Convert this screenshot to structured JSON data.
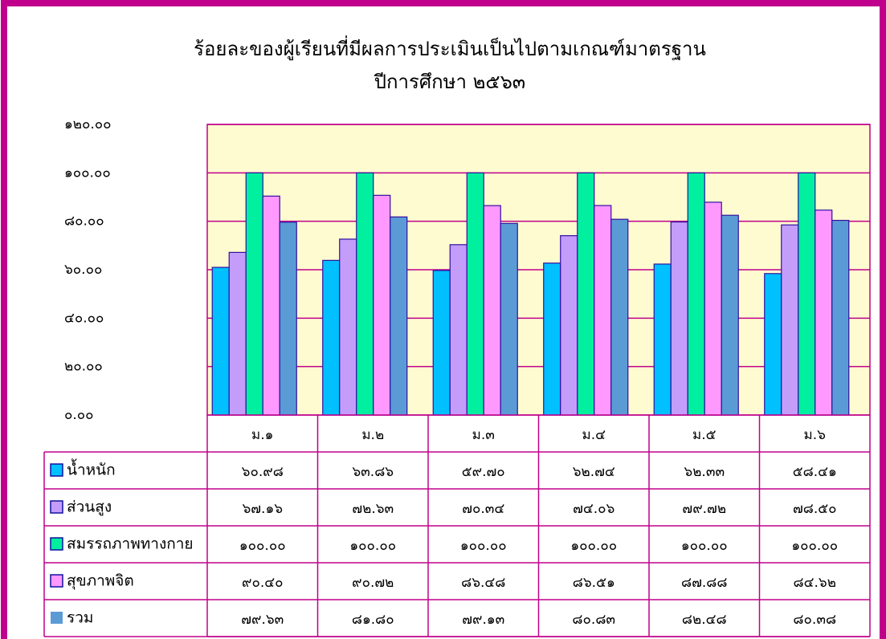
{
  "chart_data": {
    "type": "bar",
    "title": "ร้อยละของผู้เรียนที่มีผลการประเมินเป็นไปตามเกณฑ์มาตรฐาน",
    "subtitle": "ปีการศึกษา ๒๕๖๓",
    "categories": [
      "ม.๑",
      "ม.๒",
      "ม.๓",
      "ม.๔",
      "ม.๕",
      "ม.๖"
    ],
    "series": [
      {
        "name": "น้ำหนัก",
        "color": "#00c0ff",
        "values": [
          60.98,
          63.86,
          59.7,
          62.74,
          62.33,
          58.41
        ],
        "value_labels": [
          "๖๐.๙๘",
          "๖๓.๘๖",
          "๕๙.๗๐",
          "๖๒.๗๔",
          "๖๒.๓๓",
          "๕๘.๔๑"
        ]
      },
      {
        "name": "ส่วนสูง",
        "color": "#c49dfb",
        "values": [
          67.16,
          72.63,
          70.34,
          74.06,
          79.72,
          78.5
        ],
        "value_labels": [
          "๖๗.๑๖",
          "๗๒.๖๓",
          "๗๐.๓๔",
          "๗๔.๐๖",
          "๗๙.๗๒",
          "๗๘.๕๐"
        ]
      },
      {
        "name": "สมรรถภาพทางกาย",
        "color": "#00f0a0",
        "values": [
          100,
          100,
          100,
          100,
          100,
          100
        ],
        "value_labels": [
          "๑๐๐.๐๐",
          "๑๐๐.๐๐",
          "๑๐๐.๐๐",
          "๑๐๐.๐๐",
          "๑๐๐.๐๐",
          "๑๐๐.๐๐"
        ]
      },
      {
        "name": "สุขภาพจิต",
        "color": "#ff99ff",
        "values": [
          90.4,
          90.72,
          86.48,
          86.51,
          87.88,
          84.62
        ],
        "value_labels": [
          "๙๐.๔๐",
          "๙๐.๗๒",
          "๘๖.๔๘",
          "๘๖.๕๑",
          "๘๗.๘๘",
          "๘๔.๖๒"
        ]
      },
      {
        "name": "รวม",
        "color": "#5b9bd5",
        "values": [
          79.63,
          81.8,
          79.13,
          80.83,
          82.48,
          80.38
        ],
        "value_labels": [
          "๗๙.๖๓",
          "๘๑.๘๐",
          "๗๙.๑๓",
          "๘๐.๘๓",
          "๘๒.๔๘",
          "๘๐.๓๘"
        ]
      }
    ],
    "ylim": [
      0,
      120
    ],
    "yticks": [
      {
        "value": 0,
        "label": "๐.๐๐"
      },
      {
        "value": 20,
        "label": "๒๐.๐๐"
      },
      {
        "value": 40,
        "label": "๔๐.๐๐"
      },
      {
        "value": 60,
        "label": "๖๐.๐๐"
      },
      {
        "value": 80,
        "label": "๘๐.๐๐"
      },
      {
        "value": 100,
        "label": "๑๐๐.๐๐"
      },
      {
        "value": 120,
        "label": "๑๒๐.๐๐"
      }
    ],
    "grid": true
  }
}
